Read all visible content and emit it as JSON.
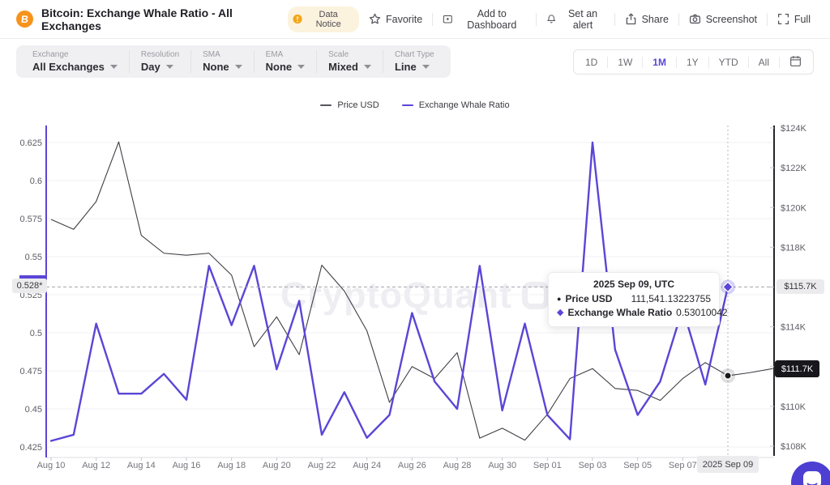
{
  "header": {
    "title": "Bitcoin: Exchange Whale Ratio - All Exchanges",
    "badge": "Data Notice",
    "actions": [
      "Favorite",
      "Add to Dashboard",
      "Set an alert",
      "Share",
      "Screenshot",
      "Full"
    ]
  },
  "controls": {
    "groups": [
      {
        "label": "Exchange",
        "value": "All Exchanges"
      },
      {
        "label": "Resolution",
        "value": "Day"
      },
      {
        "label": "SMA",
        "value": "None"
      },
      {
        "label": "EMA",
        "value": "None"
      },
      {
        "label": "Scale",
        "value": "Mixed"
      },
      {
        "label": "Chart Type",
        "value": "Line"
      }
    ],
    "ranges": [
      "1D",
      "1W",
      "1M",
      "1Y",
      "YTD",
      "All"
    ],
    "active_range": "1M"
  },
  "watermark": "CryptoQuant",
  "tooltip": {
    "title": "2025 Sep 09, UTC",
    "rows": [
      {
        "name": "Price USD",
        "value": "111,541.13223755"
      },
      {
        "name": "Exchange Whale Ratio",
        "value": "0.53010042"
      }
    ]
  },
  "axis_labels": {
    "left_crosshair": "0.528*",
    "right_crosshair": "$115.7K",
    "right_last": "$111.7K",
    "bottom_crosshair": "2025 Sep 09"
  },
  "icons": {
    "app": "bitcoin-icon",
    "notice": "warning-icon",
    "favorite": "star-icon",
    "add_to_dashboard": "board-plus-icon",
    "set_alert": "bell-icon",
    "share": "share-up-icon",
    "screenshot": "camera-icon",
    "full": "fullscreen-icon",
    "range_calendar": "calendar-icon",
    "dropdown": "chevron-down-icon",
    "chat": "chat-bubble-icon"
  },
  "colors": {
    "accent_purple": "#5a46d6",
    "price_line": "#3f3f45",
    "bitcoin_orange": "#f7931a",
    "last_price_bg": "#17171c",
    "crosshair_label_bg": "#ebebee"
  },
  "chart_data": {
    "type": "line",
    "title": "Bitcoin: Exchange Whale Ratio - All Exchanges",
    "x": [
      "Aug 10",
      "Aug 11",
      "Aug 12",
      "Aug 13",
      "Aug 14",
      "Aug 15",
      "Aug 16",
      "Aug 17",
      "Aug 18",
      "Aug 19",
      "Aug 20",
      "Aug 21",
      "Aug 22",
      "Aug 23",
      "Aug 24",
      "Aug 25",
      "Aug 26",
      "Aug 27",
      "Aug 28",
      "Aug 29",
      "Aug 30",
      "Aug 31",
      "Sep 01",
      "Sep 02",
      "Sep 03",
      "Sep 04",
      "Sep 05",
      "Sep 06",
      "Sep 07",
      "Sep 08",
      "Sep 09"
    ],
    "series": [
      {
        "name": "Price USD",
        "axis": "right",
        "color": "#3f3f45",
        "unit": "USD (thousands)",
        "values": [
          119.4,
          118.9,
          120.3,
          123.3,
          118.6,
          117.7,
          117.6,
          117.7,
          116.6,
          113.0,
          114.5,
          112.6,
          117.1,
          115.8,
          113.8,
          110.2,
          112.0,
          111.4,
          112.7,
          108.4,
          108.9,
          108.3,
          109.6,
          111.4,
          111.9,
          110.9,
          110.8,
          110.3,
          111.4,
          112.2,
          111.54113
        ],
        "post_crosshair_values": [
          111.7,
          111.9
        ]
      },
      {
        "name": "Exchange Whale Ratio",
        "axis": "left",
        "color": "#5a46d6",
        "values": [
          0.429,
          0.433,
          0.506,
          0.46,
          0.46,
          0.473,
          0.456,
          0.544,
          0.505,
          0.544,
          0.476,
          0.521,
          0.433,
          0.461,
          0.431,
          0.446,
          0.513,
          0.468,
          0.45,
          0.544,
          0.449,
          0.506,
          0.446,
          0.43,
          0.625,
          0.489,
          0.446,
          0.468,
          0.516,
          0.466,
          0.53010042
        ]
      }
    ],
    "left_axis_ticks": [
      "0.625",
      "0.6",
      "0.575",
      "0.55",
      "0.525",
      "0.5",
      "0.475",
      "0.45",
      "0.425"
    ],
    "right_axis_ticks": [
      "$124K",
      "$122K",
      "$120K",
      "$118K",
      "$116K",
      "$114K",
      "$112K",
      "$110K",
      "$108K"
    ],
    "x_tick_every": 2,
    "legend_position": "top-center",
    "grid": "horizontal",
    "crosshair_date": "2025 Sep 09"
  }
}
